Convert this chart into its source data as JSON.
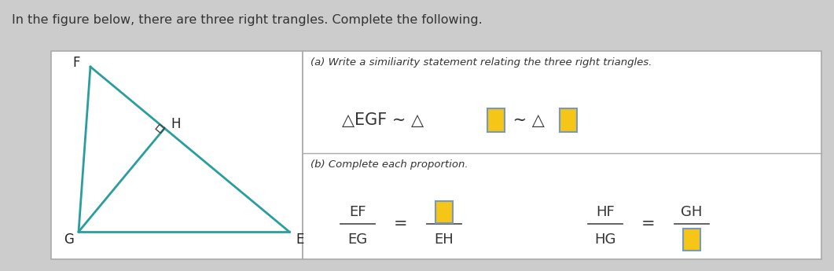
{
  "title": "In the figure below, there are three right trangles. Complete the following.",
  "bg_color": "#cccccc",
  "panel_border": "#aaaaaa",
  "triangle_color": "#2a9d9d",
  "part_a_label": "(a) Write a similiarity statement relating the three right triangles.",
  "part_b_label": "(b) Complete each proportion.",
  "box_color": "#f5c518",
  "box_border": "#7799bb",
  "fraction1_num": "EF",
  "fraction1_den": "EG",
  "fraction2_den": "EH",
  "fraction3_num": "HF",
  "fraction3_den": "HG",
  "fraction4_num": "GH"
}
